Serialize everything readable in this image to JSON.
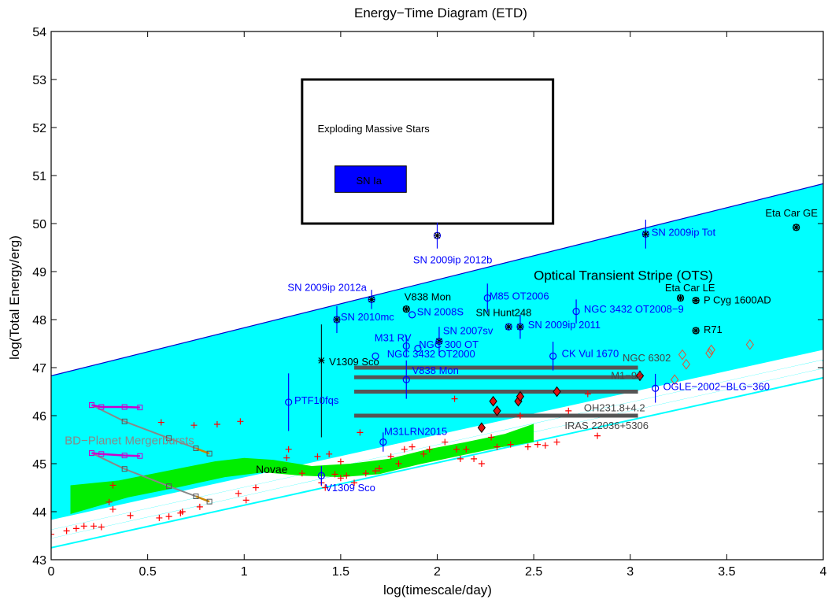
{
  "chart_data": {
    "type": "scatter",
    "title": "Energy−Time Diagram (ETD)",
    "xlabel": "log(timescale/day)",
    "ylabel": "log(Total Energy/erg)",
    "xlim": [
      0,
      4
    ],
    "ylim": [
      43,
      54
    ],
    "xticks": [
      "0",
      "0.5",
      "1",
      "1.5",
      "2",
      "2.5",
      "3",
      "3.5",
      "4"
    ],
    "yticks": [
      "43",
      "44",
      "45",
      "46",
      "47",
      "48",
      "49",
      "50",
      "51",
      "52",
      "53",
      "54"
    ],
    "grid": false,
    "colors": {
      "ots": "#00ffff",
      "ots_edge": "#0000cc",
      "novae": "#00ee00",
      "sn_ia": "#0000ff",
      "blue_points": "#0000ff",
      "red_crosses": "#ff0000",
      "bars": "#555555",
      "mergers": "#ff0000",
      "magenta": "#cc00cc",
      "orange": "#cc8800"
    },
    "regions": {
      "exploding_box": {
        "label": "Exploding Massive Stars",
        "x": [
          1.3,
          2.6
        ],
        "y": [
          50,
          53
        ]
      },
      "sn_ia_box": {
        "label": "SN Ia",
        "x": [
          1.47,
          1.84
        ],
        "y": [
          50.65,
          51.2
        ]
      },
      "ots": {
        "label": "Optical Transient Stripe (OTS)",
        "top": [
          [
            0,
            46.83
          ],
          [
            4,
            50.83
          ]
        ],
        "bottom": [
          [
            0,
            43.83
          ],
          [
            4,
            47.37
          ]
        ]
      },
      "novae": {
        "label": "Novae"
      }
    },
    "white_stripes": [
      {
        "y0": 43.71,
        "y1": 47.25
      },
      {
        "y0": 43.53,
        "y1": 47.07
      },
      {
        "y0": 43.35,
        "y1": 46.89
      }
    ],
    "annotations_blue": [
      {
        "text": "SN 2009ip 2012b",
        "x": 1.875,
        "y": 49.17
      },
      {
        "text": "SN 2009ip Tot",
        "x": 3.11,
        "y": 49.75
      },
      {
        "text": "SN 2009ip 2012a",
        "x": 1.225,
        "y": 48.6
      },
      {
        "text": "SN 2010mc",
        "x": 1.5,
        "y": 47.98
      },
      {
        "text": "SN 2008S",
        "x": 1.895,
        "y": 48.09
      },
      {
        "text": "M85 OT2006",
        "x": 2.27,
        "y": 48.42
      },
      {
        "text": "NGC 3432 OT2008−9",
        "x": 2.76,
        "y": 48.15
      },
      {
        "text": "SN 2009ip 2011",
        "x": 2.47,
        "y": 47.82
      },
      {
        "text": "SN 2007sv",
        "x": 2.03,
        "y": 47.7
      },
      {
        "text": "M31 RV",
        "x": 1.675,
        "y": 47.55
      },
      {
        "text": "NGC 300 OT",
        "x": 1.905,
        "y": 47.41
      },
      {
        "text": "NGC 3432 OT2000",
        "x": 1.74,
        "y": 47.21
      },
      {
        "text": "CK Vul 1670",
        "x": 2.645,
        "y": 47.22
      },
      {
        "text": "V838 Mon",
        "x": 1.87,
        "y": 46.87
      },
      {
        "text": "OGLE−2002−BLG−360",
        "x": 3.17,
        "y": 46.53
      },
      {
        "text": "PTF10fqs",
        "x": 1.26,
        "y": 46.25
      },
      {
        "text": "M31LRN2015",
        "x": 1.725,
        "y": 45.6
      },
      {
        "text": "V1309 Sco",
        "x": 1.42,
        "y": 44.43
      }
    ],
    "annotations_black": [
      {
        "text": "Eta Car GE",
        "x": 3.7,
        "y": 50.15
      },
      {
        "text": "Eta Car LE",
        "x": 3.18,
        "y": 48.59
      },
      {
        "text": "P Cyg 1600AD",
        "x": 3.38,
        "y": 48.34
      },
      {
        "text": "R71",
        "x": 3.38,
        "y": 47.72
      },
      {
        "text": "V838 Mon",
        "x": 1.83,
        "y": 48.4
      },
      {
        "text": "SN Hunt248",
        "x": 2.2,
        "y": 48.07
      },
      {
        "text": "V1309 Sco",
        "x": 1.44,
        "y": 47.05
      }
    ],
    "annotations_gray": [
      {
        "text": "NGC 6302",
        "x": 2.96,
        "y": 47.13
      },
      {
        "text": "M1−92",
        "x": 2.9,
        "y": 46.76
      },
      {
        "text": "OH231.8+4.2",
        "x": 2.76,
        "y": 46.09
      },
      {
        "text": "IRAS 22036+5306",
        "x": 2.66,
        "y": 45.72
      },
      {
        "text": "BD−Planet Mergerbursts",
        "x": 0.07,
        "y": 45.4
      }
    ],
    "blue_points": [
      {
        "x": 2.0,
        "y": 49.75,
        "yerr": 0.27
      },
      {
        "x": 3.08,
        "y": 49.78,
        "yerr": 0.3
      },
      {
        "x": 1.66,
        "y": 48.42,
        "yerr": 0.2
      },
      {
        "x": 1.48,
        "y": 48.0,
        "yerr": 0.28
      },
      {
        "x": 1.87,
        "y": 48.1
      },
      {
        "x": 2.26,
        "y": 48.45,
        "yerr": 0.3
      },
      {
        "x": 2.72,
        "y": 48.17,
        "yerr": 0.25
      },
      {
        "x": 2.37,
        "y": 47.85
      },
      {
        "x": 2.43,
        "y": 47.85,
        "yerr": 0.25
      },
      {
        "x": 2.01,
        "y": 47.55,
        "yerr": 0.3
      },
      {
        "x": 1.84,
        "y": 47.45,
        "yerr": 0.22
      },
      {
        "x": 1.9,
        "y": 47.4
      },
      {
        "x": 1.68,
        "y": 47.24
      },
      {
        "x": 2.6,
        "y": 47.24,
        "yerr": 0.3
      },
      {
        "x": 1.84,
        "y": 46.75,
        "yerr": 0.4
      },
      {
        "x": 3.13,
        "y": 46.57,
        "yerr": 0.3
      },
      {
        "x": 1.23,
        "y": 46.28,
        "yerr": 0.6
      },
      {
        "x": 1.72,
        "y": 45.45,
        "yerr": 0.2
      },
      {
        "x": 1.4,
        "y": 44.75,
        "yerr": 0.2
      }
    ],
    "black_points": [
      {
        "x": 3.86,
        "y": 49.92
      },
      {
        "x": 3.26,
        "y": 48.45
      },
      {
        "x": 3.34,
        "y": 48.4
      },
      {
        "x": 3.34,
        "y": 47.77
      },
      {
        "x": 1.84,
        "y": 48.22
      }
    ],
    "v1309_star": {
      "x": 1.4,
      "y": 47.15,
      "yerr_lo": 1.6,
      "yerr_hi": 0.75
    },
    "bars": [
      {
        "x0": 1.57,
        "x1": 3.04,
        "y": 47.0
      },
      {
        "x0": 1.57,
        "x1": 3.04,
        "y": 46.8
      },
      {
        "x0": 1.57,
        "x1": 3.04,
        "y": 46.5
      },
      {
        "x0": 1.57,
        "x1": 3.04,
        "y": 46.0
      }
    ],
    "red_diamonds": [
      {
        "x": 2.29,
        "y": 46.3
      },
      {
        "x": 2.31,
        "y": 46.1
      },
      {
        "x": 2.42,
        "y": 46.3
      },
      {
        "x": 2.43,
        "y": 46.4
      },
      {
        "x": 2.23,
        "y": 45.75
      },
      {
        "x": 2.62,
        "y": 46.5
      },
      {
        "x": 3.05,
        "y": 46.83
      }
    ],
    "open_diamonds": [
      {
        "x": 3.23,
        "y": 46.75
      },
      {
        "x": 3.27,
        "y": 47.27
      },
      {
        "x": 3.29,
        "y": 47.07
      },
      {
        "x": 3.41,
        "y": 47.3
      },
      {
        "x": 3.42,
        "y": 47.37
      },
      {
        "x": 3.62,
        "y": 47.48
      }
    ],
    "red_crosses": [
      [
        0.0,
        43.53
      ],
      [
        0.08,
        43.6
      ],
      [
        0.13,
        43.65
      ],
      [
        0.17,
        43.7
      ],
      [
        0.22,
        43.7
      ],
      [
        0.26,
        43.68
      ],
      [
        0.3,
        44.2
      ],
      [
        0.32,
        44.05
      ],
      [
        0.32,
        44.55
      ],
      [
        0.41,
        43.92
      ],
      [
        0.56,
        43.87
      ],
      [
        0.61,
        43.9
      ],
      [
        0.67,
        43.97
      ],
      [
        0.68,
        44.0
      ],
      [
        0.77,
        44.1
      ],
      [
        0.97,
        44.38
      ],
      [
        1.01,
        44.24
      ],
      [
        1.06,
        44.5
      ],
      [
        0.57,
        45.86
      ],
      [
        0.74,
        45.8
      ],
      [
        0.86,
        45.82
      ],
      [
        0.98,
        45.88
      ],
      [
        1.23,
        45.3
      ],
      [
        1.22,
        45.12
      ],
      [
        1.3,
        44.8
      ],
      [
        1.38,
        45.15
      ],
      [
        1.44,
        45.2
      ],
      [
        1.5,
        45.04
      ],
      [
        1.47,
        44.78
      ],
      [
        1.5,
        44.7
      ],
      [
        1.53,
        44.75
      ],
      [
        1.57,
        44.6
      ],
      [
        1.6,
        45.65
      ],
      [
        1.63,
        44.8
      ],
      [
        1.68,
        44.85
      ],
      [
        1.7,
        44.9
      ],
      [
        1.76,
        45.15
      ],
      [
        1.8,
        45.0
      ],
      [
        1.83,
        45.3
      ],
      [
        1.87,
        45.35
      ],
      [
        1.93,
        45.2
      ],
      [
        1.96,
        45.3
      ],
      [
        2.04,
        45.45
      ],
      [
        2.1,
        45.3
      ],
      [
        2.12,
        45.1
      ],
      [
        2.15,
        45.3
      ],
      [
        2.19,
        45.1
      ],
      [
        2.23,
        45.0
      ],
      [
        2.28,
        45.55
      ],
      [
        2.31,
        45.35
      ],
      [
        2.38,
        45.4
      ],
      [
        2.43,
        46.0
      ],
      [
        2.47,
        45.35
      ],
      [
        2.52,
        45.4
      ],
      [
        2.56,
        45.38
      ],
      [
        2.62,
        45.45
      ],
      [
        2.68,
        46.1
      ],
      [
        2.78,
        46.45
      ],
      [
        2.83,
        45.58
      ],
      [
        2.09,
        46.35
      ],
      [
        1.4,
        44.6
      ],
      [
        1.42,
        44.5
      ]
    ],
    "mergers": {
      "upper_magenta": [
        [
          0.21,
          46.22
        ],
        [
          0.26,
          46.18
        ],
        [
          0.38,
          46.18
        ],
        [
          0.46,
          46.17
        ]
      ],
      "lower_magenta": [
        [
          0.21,
          45.22
        ],
        [
          0.26,
          45.2
        ],
        [
          0.38,
          45.17
        ],
        [
          0.46,
          45.16
        ]
      ],
      "upper_gray": [
        [
          0.21,
          46.22
        ],
        [
          0.38,
          45.88
        ],
        [
          0.61,
          45.53
        ],
        [
          0.75,
          45.32
        ],
        [
          0.82,
          45.21
        ]
      ],
      "lower_gray": [
        [
          0.21,
          45.22
        ],
        [
          0.38,
          44.89
        ],
        [
          0.61,
          44.53
        ],
        [
          0.75,
          44.32
        ],
        [
          0.82,
          44.21
        ]
      ]
    },
    "novae_band": {
      "top": [
        [
          0.1,
          44.55
        ],
        [
          0.35,
          44.65
        ],
        [
          0.6,
          44.85
        ],
        [
          0.85,
          45.05
        ],
        [
          1.0,
          45.12
        ],
        [
          1.15,
          45.08
        ],
        [
          1.35,
          44.95
        ],
        [
          1.55,
          45.0
        ],
        [
          1.75,
          45.1
        ],
        [
          1.95,
          45.3
        ],
        [
          2.15,
          45.45
        ],
        [
          2.35,
          45.62
        ],
        [
          2.5,
          45.83
        ]
      ],
      "bottom": [
        [
          2.5,
          45.45
        ],
        [
          2.3,
          45.32
        ],
        [
          2.1,
          45.15
        ],
        [
          1.9,
          44.98
        ],
        [
          1.7,
          44.78
        ],
        [
          1.5,
          44.72
        ],
        [
          1.3,
          44.75
        ],
        [
          1.1,
          44.82
        ],
        [
          0.9,
          44.72
        ],
        [
          0.65,
          44.5
        ],
        [
          0.4,
          44.3
        ],
        [
          0.1,
          43.95
        ]
      ]
    }
  }
}
